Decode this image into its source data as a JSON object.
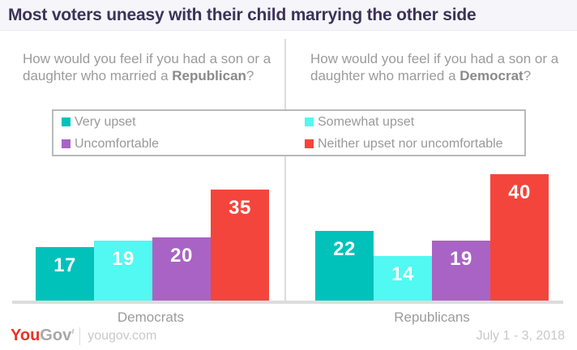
{
  "title": "Most voters uneasy with their child marrying the other side",
  "panels": [
    {
      "question_prefix": "How would you feel if you had a son or a daughter who married a ",
      "question_bold": "Republican",
      "question_suffix": "?",
      "category": "Democrats"
    },
    {
      "question_prefix": "How would you feel if you had a son or a daughter who married a ",
      "question_bold": "Democrat",
      "question_suffix": "?",
      "category": "Republicans"
    }
  ],
  "legend": [
    {
      "label": "Very upset",
      "color": "#00c2ba"
    },
    {
      "label": "Somewhat upset",
      "color": "#52f8f2"
    },
    {
      "label": "Uncomfortable",
      "color": "#a963c4"
    },
    {
      "label": "Neither upset nor uncomfortable",
      "color": "#f4453c"
    }
  ],
  "chart_data": {
    "type": "bar",
    "groups": [
      "Democrats",
      "Republicans"
    ],
    "categories": [
      "Democrats",
      "Republicans"
    ],
    "series": [
      {
        "name": "Very upset",
        "color": "#00c2ba",
        "values": [
          17,
          22
        ]
      },
      {
        "name": "Somewhat upset",
        "color": "#52f8f2",
        "values": [
          19,
          14
        ]
      },
      {
        "name": "Uncomfortable",
        "color": "#a963c4",
        "values": [
          20,
          19
        ]
      },
      {
        "name": "Neither upset nor uncomfortable",
        "color": "#f4453c",
        "values": [
          35,
          40
        ]
      }
    ],
    "value_unit": "percent",
    "ylim": [
      0,
      45
    ],
    "grid": false,
    "legend_position": "top",
    "value_labels": "inside-top-white"
  },
  "colors": {
    "title_text": "#3b3358",
    "header_bg": "#f5f5fa",
    "question_text": "#9b9b9b",
    "baseline": "#dcdcdc",
    "legend_border": "#b9b9b9",
    "brand_red": "#ee3124"
  },
  "footer": {
    "brand_you": "You",
    "brand_gov": "Gov",
    "site": "yougov.com",
    "date": "July 1 - 3, 2018"
  }
}
